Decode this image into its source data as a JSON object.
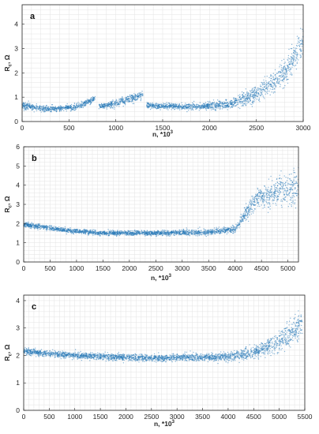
{
  "chart_data": [
    {
      "type": "scatter",
      "panel_label": "a",
      "xlabel": "n, *10^3",
      "ylabel": "R_c, Ω",
      "xlim": [
        0,
        3000
      ],
      "ylim": [
        0,
        4.8
      ],
      "xticks": [
        0,
        500,
        1000,
        1500,
        2000,
        2500,
        3000
      ],
      "yticks": [
        0,
        1,
        2,
        3,
        4
      ],
      "grid": true,
      "color": "#2a7ab8",
      "trend": [
        {
          "x": 0,
          "y": 0.65,
          "spread": 0.12
        },
        {
          "x": 300,
          "y": 0.5,
          "spread": 0.1
        },
        {
          "x": 600,
          "y": 0.62,
          "spread": 0.1
        },
        {
          "x": 780,
          "y": 0.95,
          "spread": 0.1
        },
        {
          "x": 800,
          "y": null
        },
        {
          "x": 820,
          "y": 0.6,
          "spread": 0.1
        },
        {
          "x": 1000,
          "y": 0.75,
          "spread": 0.12
        },
        {
          "x": 1290,
          "y": 1.1,
          "spread": 0.12
        },
        {
          "x": 1310,
          "y": null
        },
        {
          "x": 1330,
          "y": 0.65,
          "spread": 0.1
        },
        {
          "x": 1800,
          "y": 0.6,
          "spread": 0.1
        },
        {
          "x": 2200,
          "y": 0.7,
          "spread": 0.15
        },
        {
          "x": 2500,
          "y": 1.1,
          "spread": 0.3
        },
        {
          "x": 2800,
          "y": 2.0,
          "spread": 0.4
        },
        {
          "x": 3000,
          "y": 3.3,
          "spread": 0.55
        }
      ]
    },
    {
      "type": "scatter",
      "panel_label": "b",
      "xlabel": "n, *10^3",
      "ylabel": "R_c, Ω",
      "xlim": [
        0,
        5200
      ],
      "ylim": [
        0,
        6
      ],
      "xticks": [
        0,
        500,
        1000,
        1500,
        2000,
        2500,
        3000,
        3500,
        4000,
        4500,
        5000
      ],
      "yticks": [
        0,
        1,
        2,
        3,
        4,
        5,
        6
      ],
      "grid": true,
      "color": "#2a7ab8",
      "trend": [
        {
          "x": 0,
          "y": 1.95,
          "spread": 0.12
        },
        {
          "x": 800,
          "y": 1.65,
          "spread": 0.1
        },
        {
          "x": 1500,
          "y": 1.5,
          "spread": 0.1
        },
        {
          "x": 2500,
          "y": 1.5,
          "spread": 0.1
        },
        {
          "x": 3500,
          "y": 1.55,
          "spread": 0.12
        },
        {
          "x": 4000,
          "y": 1.7,
          "spread": 0.15
        },
        {
          "x": 4200,
          "y": 2.5,
          "spread": 0.3
        },
        {
          "x": 4400,
          "y": 3.3,
          "spread": 0.4
        },
        {
          "x": 4800,
          "y": 3.7,
          "spread": 0.6
        },
        {
          "x": 5200,
          "y": 3.9,
          "spread": 0.8
        }
      ]
    },
    {
      "type": "scatter",
      "panel_label": "c",
      "xlabel": "n, *10^3",
      "ylabel": "R_c, Ω",
      "xlim": [
        0,
        5500
      ],
      "ylim": [
        0,
        4.2
      ],
      "xticks": [
        0,
        500,
        1000,
        1500,
        2000,
        2500,
        3000,
        3500,
        4000,
        4500,
        5000,
        5500
      ],
      "yticks": [
        0,
        1,
        2,
        3,
        4
      ],
      "grid": true,
      "color": "#2a7ab8",
      "trend": [
        {
          "x": 0,
          "y": 2.15,
          "spread": 0.1
        },
        {
          "x": 1000,
          "y": 2.0,
          "spread": 0.1
        },
        {
          "x": 2500,
          "y": 1.9,
          "spread": 0.1
        },
        {
          "x": 4000,
          "y": 1.95,
          "spread": 0.12
        },
        {
          "x": 4500,
          "y": 2.1,
          "spread": 0.2
        },
        {
          "x": 5000,
          "y": 2.5,
          "spread": 0.3
        },
        {
          "x": 5450,
          "y": 3.1,
          "spread": 0.4
        }
      ]
    }
  ]
}
